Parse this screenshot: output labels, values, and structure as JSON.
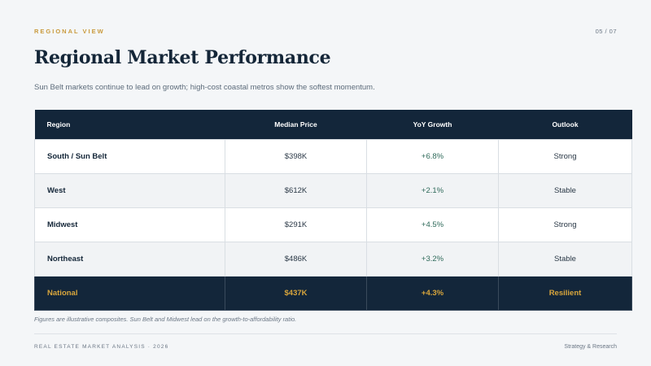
{
  "header": {
    "eyebrow": "REGIONAL VIEW",
    "page": "05 / 07",
    "title": "Regional Market Performance",
    "subtitle": "Sun Belt markets continue to lead on growth; high-cost coastal metros show the softest momentum."
  },
  "table": {
    "columns": [
      "Region",
      "Median Price",
      "YoY Growth",
      "Outlook"
    ],
    "rows": [
      {
        "region": "South / Sun Belt",
        "price": "$398K",
        "growth": "+6.8%",
        "outlook": "Strong"
      },
      {
        "region": "West",
        "price": "$612K",
        "growth": "+2.1%",
        "outlook": "Stable"
      },
      {
        "region": "Midwest",
        "price": "$291K",
        "growth": "+4.5%",
        "outlook": "Strong"
      },
      {
        "region": "Northeast",
        "price": "$486K",
        "growth": "+3.2%",
        "outlook": "Stable"
      }
    ],
    "total": {
      "region": "National",
      "price": "$437K",
      "growth": "+4.3%",
      "outlook": "Resilient"
    }
  },
  "note": "Figures are illustrative composites. Sun Belt and Midwest lead on the growth-to-affordability ratio.",
  "footer": {
    "left": "REAL ESTATE MARKET ANALYSIS · 2026",
    "right": "Strategy & Research"
  },
  "colors": {
    "accent": "#c99a3c",
    "header_bg": "#13263a",
    "total_text": "#d9a63c"
  }
}
